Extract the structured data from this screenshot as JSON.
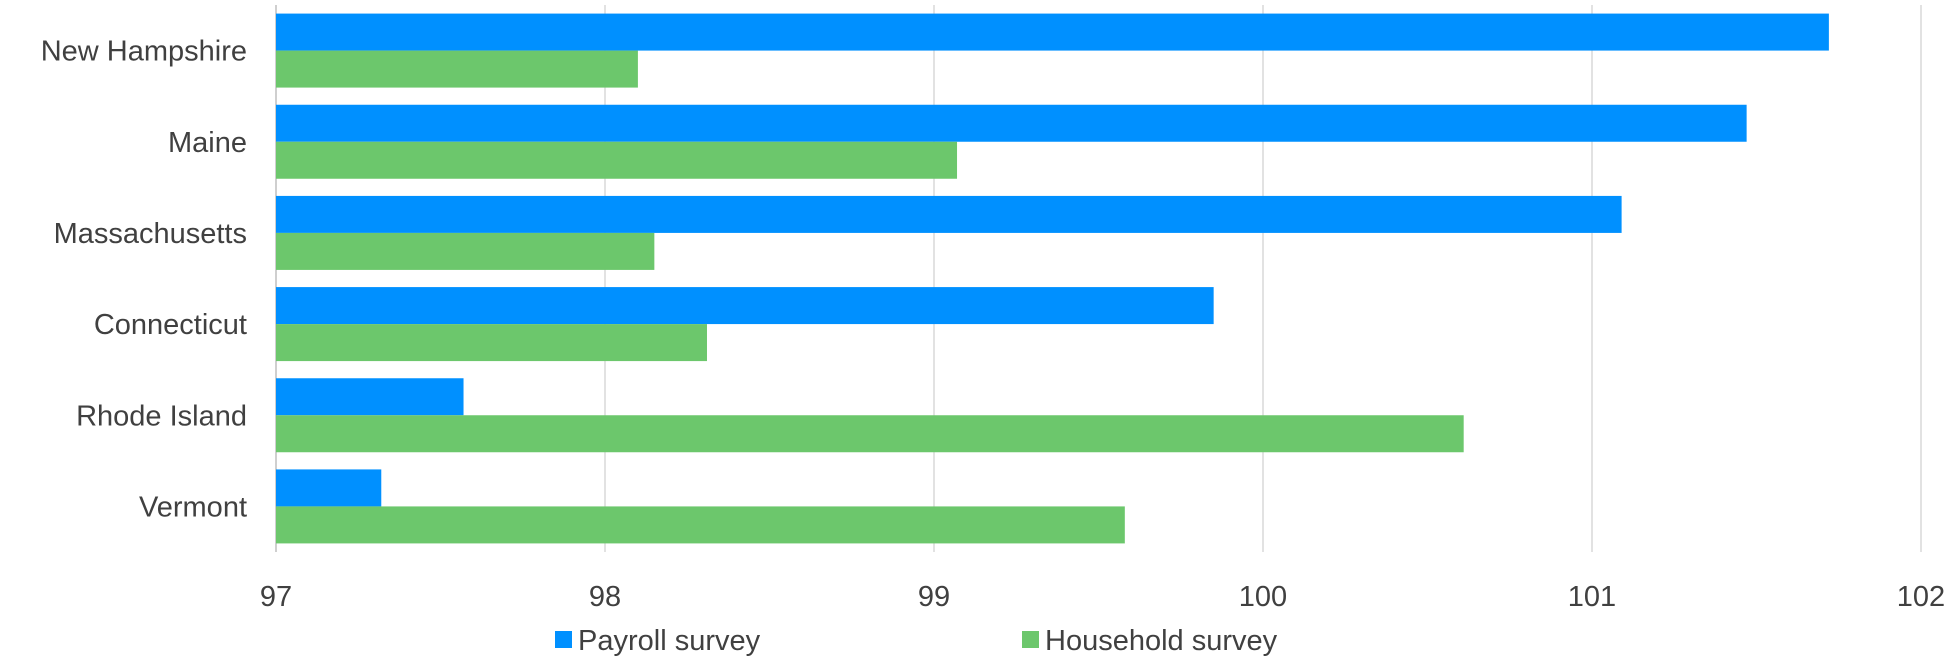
{
  "chart_data": {
    "type": "bar",
    "orientation": "horizontal",
    "categories": [
      "New Hampshire",
      "Maine",
      "Massachusetts",
      "Connecticut",
      "Rhode Island",
      "Vermont"
    ],
    "series": [
      {
        "name": "Payroll survey",
        "color": "#0090ff",
        "values": [
          101.72,
          101.47,
          101.09,
          99.85,
          97.57,
          97.32
        ]
      },
      {
        "name": "Household survey",
        "color": "#6cc76c",
        "values": [
          98.1,
          99.07,
          98.15,
          98.31,
          100.61,
          99.58
        ]
      }
    ],
    "x_ticks": [
      97,
      98,
      99,
      100,
      101,
      102
    ],
    "xlim": [
      97,
      102
    ],
    "title": "",
    "xlabel": "",
    "ylabel": "",
    "grid": true,
    "legend_position": "bottom"
  }
}
